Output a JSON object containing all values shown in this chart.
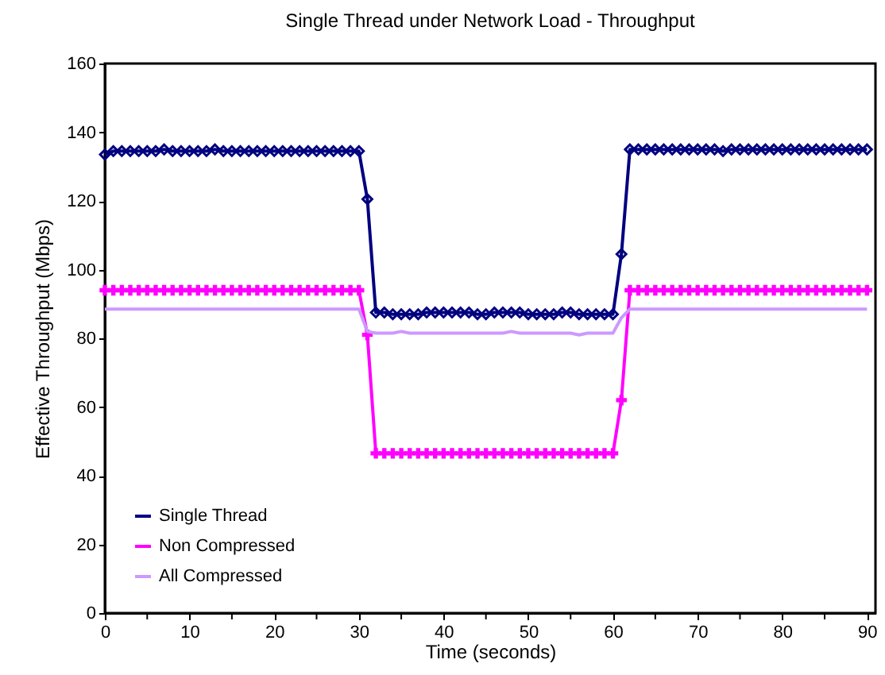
{
  "chart_data": {
    "type": "line",
    "title": "Single Thread under Network Load - Throughput",
    "xlabel": "Time (seconds)",
    "ylabel": "Effective Throughput (Mbps)",
    "x": [
      0,
      1,
      2,
      3,
      4,
      5,
      6,
      7,
      8,
      9,
      10,
      11,
      12,
      13,
      14,
      15,
      16,
      17,
      18,
      19,
      20,
      21,
      22,
      23,
      24,
      25,
      26,
      27,
      28,
      29,
      30,
      31,
      32,
      33,
      34,
      35,
      36,
      37,
      38,
      39,
      40,
      41,
      42,
      43,
      44,
      45,
      46,
      47,
      48,
      49,
      50,
      51,
      52,
      53,
      54,
      55,
      56,
      57,
      58,
      59,
      60,
      61,
      62,
      63,
      64,
      65,
      66,
      67,
      68,
      69,
      70,
      71,
      72,
      73,
      74,
      75,
      76,
      77,
      78,
      79,
      80,
      81,
      82,
      83,
      84,
      85,
      86,
      87,
      88,
      89,
      90
    ],
    "series": [
      {
        "name": "Single Thread",
        "color": "#000080",
        "marker": "diamond",
        "values": [
          133.5,
          134.5,
          134.5,
          134.5,
          134.5,
          134.5,
          134.5,
          135,
          134.5,
          134.5,
          134.5,
          134.5,
          134.5,
          135,
          134.5,
          134.5,
          134.5,
          134.5,
          134.5,
          134.5,
          134.5,
          134.5,
          134.5,
          134.5,
          134.5,
          134.5,
          134.5,
          134.5,
          134.5,
          134.5,
          134.5,
          120.5,
          87.5,
          87.5,
          87,
          87,
          87,
          87,
          87.5,
          87.5,
          87.5,
          87.5,
          87.5,
          87.5,
          87,
          87,
          87.5,
          87.5,
          87.5,
          87.5,
          87,
          87,
          87,
          87,
          87.5,
          87.5,
          87,
          87,
          87,
          87,
          87,
          104.5,
          135,
          135,
          135,
          135,
          135,
          135,
          135,
          135,
          135,
          135,
          135,
          134.5,
          135,
          135,
          135,
          135,
          135,
          135,
          135,
          135,
          135,
          135,
          135,
          135,
          135,
          135,
          135,
          135,
          135
        ]
      },
      {
        "name": "Non Compressed",
        "color": "#ff00ff",
        "marker": "cross",
        "values": [
          94,
          94,
          94,
          94,
          94,
          94,
          94,
          94,
          94,
          94,
          94,
          94,
          94,
          94,
          94,
          94,
          94,
          94,
          94,
          94,
          94,
          94,
          94,
          94,
          94,
          94,
          94,
          94,
          94,
          94,
          94,
          81,
          46.5,
          46.5,
          46.5,
          46.5,
          46.5,
          46.5,
          46.5,
          46.5,
          46.5,
          46.5,
          46.5,
          46.5,
          46.5,
          46.5,
          46.5,
          46.5,
          46.5,
          46.5,
          46.5,
          46.5,
          46.5,
          46.5,
          46.5,
          46.5,
          46.5,
          46.5,
          46.5,
          46.5,
          46.5,
          62,
          94,
          94,
          94,
          94,
          94,
          94,
          94,
          94,
          94,
          94,
          94,
          94,
          94,
          94,
          94,
          94,
          94,
          94,
          94,
          94,
          94,
          94,
          94,
          94,
          94,
          94,
          94,
          94,
          94
        ]
      },
      {
        "name": "All Compressed",
        "color": "#cc99ff",
        "marker": "none",
        "values": [
          88.5,
          88.5,
          88.5,
          88.5,
          88.5,
          88.5,
          88.5,
          88.5,
          88.5,
          88.5,
          88.5,
          88.5,
          88.5,
          88.5,
          88.5,
          88.5,
          88.5,
          88.5,
          88.5,
          88.5,
          88.5,
          88.5,
          88.5,
          88.5,
          88.5,
          88.5,
          88.5,
          88.5,
          88.5,
          88.5,
          88.5,
          82,
          81.5,
          81.5,
          81.5,
          82,
          81.5,
          81.5,
          81.5,
          81.5,
          81.5,
          81.5,
          81.5,
          81.5,
          81.5,
          81.5,
          81.5,
          81.5,
          82,
          81.5,
          81.5,
          81.5,
          81.5,
          81.5,
          81.5,
          81.5,
          81,
          81.5,
          81.5,
          81.5,
          81.5,
          86,
          88.5,
          88.5,
          88.5,
          88.5,
          88.5,
          88.5,
          88.5,
          88.5,
          88.5,
          88.5,
          88.5,
          88.5,
          88.5,
          88.5,
          88.5,
          88.5,
          88.5,
          88.5,
          88.5,
          88.5,
          88.5,
          88.5,
          88.5,
          88.5,
          88.5,
          88.5,
          88.5,
          88.5,
          88.5
        ]
      }
    ],
    "xlim": [
      0,
      91
    ],
    "xticks": [
      0,
      {
        "value": 5,
        "label": null
      },
      10,
      {
        "value": 15,
        "label": null
      },
      20,
      {
        "value": 25,
        "label": null
      },
      30,
      {
        "value": 35,
        "label": null
      },
      40,
      {
        "value": 45,
        "label": null
      },
      50,
      {
        "value": 55,
        "label": null
      },
      60,
      {
        "value": 65,
        "label": null
      },
      70,
      {
        "value": 75,
        "label": null
      },
      80,
      {
        "value": 85,
        "label": null
      },
      90
    ],
    "ylim": [
      0,
      160
    ],
    "yticks": [
      0,
      20,
      40,
      60,
      80,
      100,
      120,
      140,
      160
    ],
    "grid": false,
    "legend": "bottom left"
  }
}
